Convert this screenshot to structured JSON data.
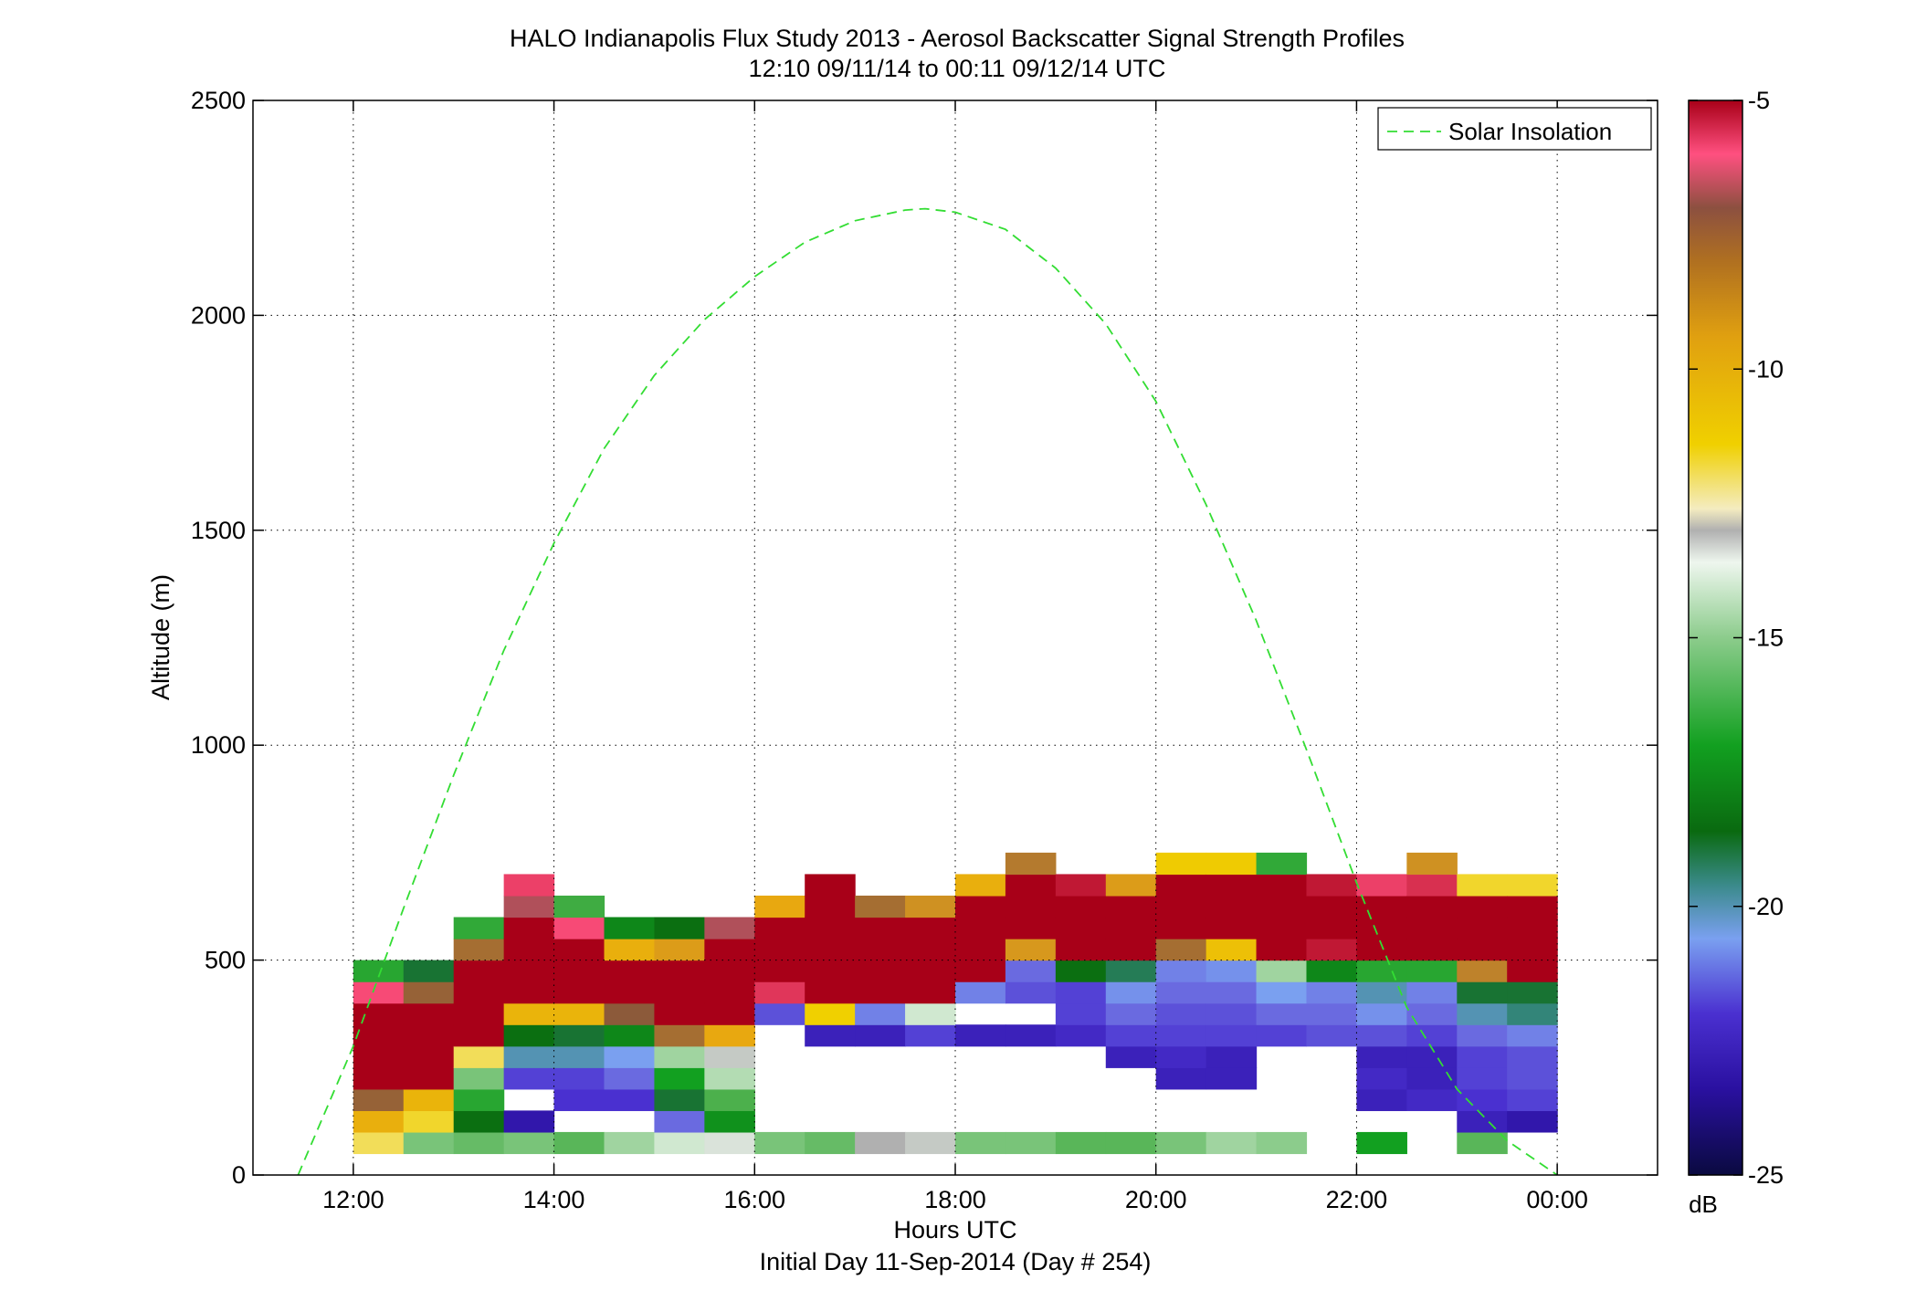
{
  "chart_data": {
    "type": "heatmap",
    "title": "HALO Indianapolis Flux Study 2013 - Aerosol Backscatter Signal Strength Profiles",
    "subtitle": "12:10 09/11/14 to 00:11 09/12/14  UTC",
    "xlabel": "Hours UTC",
    "xlabel2": "Initial Day 11-Sep-2014 (Day # 254)",
    "ylabel": "Altitude (m)",
    "xlim": [
      11,
      25
    ],
    "ylim": [
      0,
      2500
    ],
    "grid": true,
    "x_ticks": [
      12,
      14,
      16,
      18,
      20,
      22,
      24
    ],
    "x_tick_labels": [
      "12:00",
      "14:00",
      "16:00",
      "18:00",
      "20:00",
      "22:00",
      "00:00"
    ],
    "y_ticks": [
      0,
      500,
      1000,
      1500,
      2000,
      2500
    ],
    "y_tick_labels": [
      "0",
      "500",
      "1000",
      "1500",
      "2000",
      "2500"
    ],
    "colorbar": {
      "min": -25,
      "max": -5,
      "unit": "dB",
      "ticks": [
        -5,
        -10,
        -15,
        -20,
        -25
      ],
      "tick_labels": [
        "-5",
        "-10",
        "-15",
        "-20",
        "-25"
      ]
    },
    "legend": {
      "label": "Solar Insolation",
      "placement": "top-right",
      "color": "#33dd33",
      "style": "dashed"
    },
    "solar_insolation": {
      "x": [
        11.45,
        12.0,
        12.5,
        13.0,
        13.5,
        14.0,
        14.5,
        15.0,
        15.5,
        16.0,
        16.5,
        17.0,
        17.5,
        17.7,
        18.0,
        18.5,
        19.0,
        19.5,
        20.0,
        20.5,
        21.0,
        21.5,
        22.0,
        22.5,
        23.0,
        23.5,
        24.0
      ],
      "y": [
        0,
        300,
        620,
        930,
        1220,
        1470,
        1690,
        1860,
        1990,
        2090,
        2170,
        2220,
        2245,
        2248,
        2240,
        2200,
        2110,
        1980,
        1800,
        1560,
        1290,
        990,
        680,
        390,
        200,
        80,
        0
      ]
    },
    "cell_width_hours": 0.5,
    "cell_height_m": 50,
    "altitudes": [
      75,
      125,
      175,
      225,
      275,
      325,
      375,
      425,
      475,
      525,
      575,
      625,
      675,
      725
    ],
    "columns": [
      {
        "t": 12.25,
        "values": [
          -13.8,
          -11.8,
          -9.2,
          -5.0,
          -5.0,
          -5.0,
          -5.0,
          -6.8,
          -18.0,
          null,
          null,
          null,
          null,
          null
        ]
      },
      {
        "t": 12.75,
        "values": [
          -16.5,
          -13.5,
          -12.0,
          -5.0,
          -5.0,
          -5.0,
          -5.0,
          -9.2,
          -19.8,
          null,
          null,
          null,
          null,
          null
        ]
      },
      {
        "t": 13.25,
        "values": [
          -16.8,
          -19.5,
          -18.0,
          -16.5,
          -13.8,
          -5.0,
          -5.0,
          -5.0,
          -5.0,
          -9.5,
          -17.8,
          null,
          null,
          null
        ]
      },
      {
        "t": 13.75,
        "values": [
          -16.5,
          -23.2,
          null,
          -22.0,
          -20.5,
          -19.5,
          -12.0,
          -5.0,
          -5.0,
          -5.0,
          -5.0,
          -8.0,
          -6.5,
          null
        ]
      },
      {
        "t": 14.25,
        "values": [
          -17.0,
          null,
          -22.2,
          -22.0,
          -20.5,
          -19.8,
          -12.0,
          -5.0,
          -5.0,
          -5.0,
          -6.8,
          -17.5,
          null,
          null
        ]
      },
      {
        "t": 14.75,
        "values": [
          -16.0,
          null,
          -22.2,
          -21.5,
          -20.8,
          -19.0,
          -9.0,
          -5.0,
          -5.0,
          -11.8,
          -19.0,
          null,
          null,
          null
        ]
      },
      {
        "t": 15.25,
        "values": [
          -15.5,
          -21.5,
          -19.8,
          -18.5,
          -16.0,
          -9.5,
          -5.0,
          -5.0,
          -5.0,
          -11.0,
          -19.5,
          null,
          null,
          null
        ]
      },
      {
        "t": 15.75,
        "values": [
          -15.2,
          -18.8,
          -17.2,
          -15.8,
          -15.0,
          -11.5,
          -5.0,
          -5.0,
          -5.0,
          -5.0,
          -8.0,
          null,
          null,
          null
        ]
      },
      {
        "t": 16.25,
        "values": [
          -16.5,
          null,
          null,
          null,
          null,
          null,
          -21.8,
          -6.2,
          -5.0,
          -5.0,
          -5.0,
          -11.5,
          null,
          null
        ]
      },
      {
        "t": 16.75,
        "values": [
          -16.8,
          null,
          null,
          null,
          null,
          -22.8,
          -13.2,
          -5.0,
          -5.0,
          -5.0,
          -5.0,
          -5.0,
          -5.0,
          null
        ]
      },
      {
        "t": 17.25,
        "values": [
          -14.8,
          null,
          null,
          null,
          null,
          -22.8,
          -21.2,
          -5.0,
          -5.0,
          -5.0,
          -5.0,
          -9.5,
          null,
          null
        ]
      },
      {
        "t": 17.75,
        "values": [
          -15.0,
          null,
          null,
          null,
          null,
          -22.0,
          -15.5,
          -5.0,
          -5.0,
          -5.0,
          -5.0,
          -10.5,
          null,
          null
        ]
      },
      {
        "t": 18.25,
        "values": [
          -16.5,
          null,
          null,
          null,
          null,
          -22.8,
          null,
          -21.2,
          -5.0,
          -5.0,
          -5.0,
          -5.0,
          -11.8,
          null
        ]
      },
      {
        "t": 18.75,
        "values": [
          -16.5,
          null,
          null,
          null,
          null,
          -22.8,
          null,
          -21.8,
          -21.5,
          -10.8,
          -5.0,
          -5.0,
          -5.0,
          -9.8
        ]
      },
      {
        "t": 19.25,
        "values": [
          -17.0,
          null,
          null,
          null,
          null,
          -22.5,
          -22.0,
          -22.0,
          -19.5,
          -5.0,
          -5.0,
          -5.0,
          -5.5,
          null
        ]
      },
      {
        "t": 19.75,
        "values": [
          -17.0,
          null,
          null,
          null,
          -22.8,
          -22.0,
          -21.5,
          -21.0,
          -20.0,
          -5.0,
          -5.0,
          -5.0,
          -11.0,
          null
        ]
      },
      {
        "t": 20.25,
        "values": [
          -16.5,
          null,
          null,
          -22.8,
          -22.5,
          -22.0,
          -21.8,
          -21.5,
          -21.2,
          -9.5,
          -5.0,
          -5.0,
          -5.0,
          -13.0
        ]
      },
      {
        "t": 20.75,
        "values": [
          -16.0,
          null,
          null,
          -22.8,
          -22.8,
          -22.0,
          -21.8,
          -21.5,
          -21.0,
          -12.5,
          -5.0,
          -5.0,
          -5.0,
          -13.0
        ]
      },
      {
        "t": 21.25,
        "values": [
          -16.2,
          null,
          null,
          null,
          null,
          -22.0,
          -21.5,
          -20.8,
          -16.0,
          -5.0,
          -5.0,
          -5.0,
          -5.0,
          -17.8
        ]
      },
      {
        "t": 21.75,
        "values": [
          null,
          null,
          null,
          null,
          null,
          -21.8,
          -21.5,
          -21.2,
          -19.0,
          -5.5,
          -5.0,
          -5.0,
          -5.5,
          null
        ]
      },
      {
        "t": 22.25,
        "values": [
          -18.5,
          null,
          -22.8,
          -22.5,
          -22.8,
          -21.8,
          -21.0,
          -20.5,
          -18.0,
          -5.0,
          -5.0,
          -5.0,
          -6.5,
          null
        ]
      },
      {
        "t": 22.75,
        "values": [
          null,
          null,
          -22.5,
          -22.8,
          -22.8,
          -22.0,
          -21.5,
          -21.2,
          -18.0,
          -5.0,
          -5.0,
          -5.0,
          -6.0,
          -10.5
        ]
      },
      {
        "t": 23.25,
        "values": [
          -17.0,
          -22.8,
          -22.2,
          -22.0,
          -22.0,
          -21.5,
          -20.5,
          -19.8,
          -10.0,
          -5.0,
          -5.0,
          -5.0,
          -13.5,
          null
        ]
      },
      {
        "t": 23.75,
        "values": [
          null,
          -23.2,
          -22.0,
          -21.8,
          -21.8,
          -21.2,
          -20.2,
          -19.8,
          -5.0,
          -5.0,
          -5.0,
          -5.0,
          -13.5,
          null
        ]
      }
    ]
  }
}
